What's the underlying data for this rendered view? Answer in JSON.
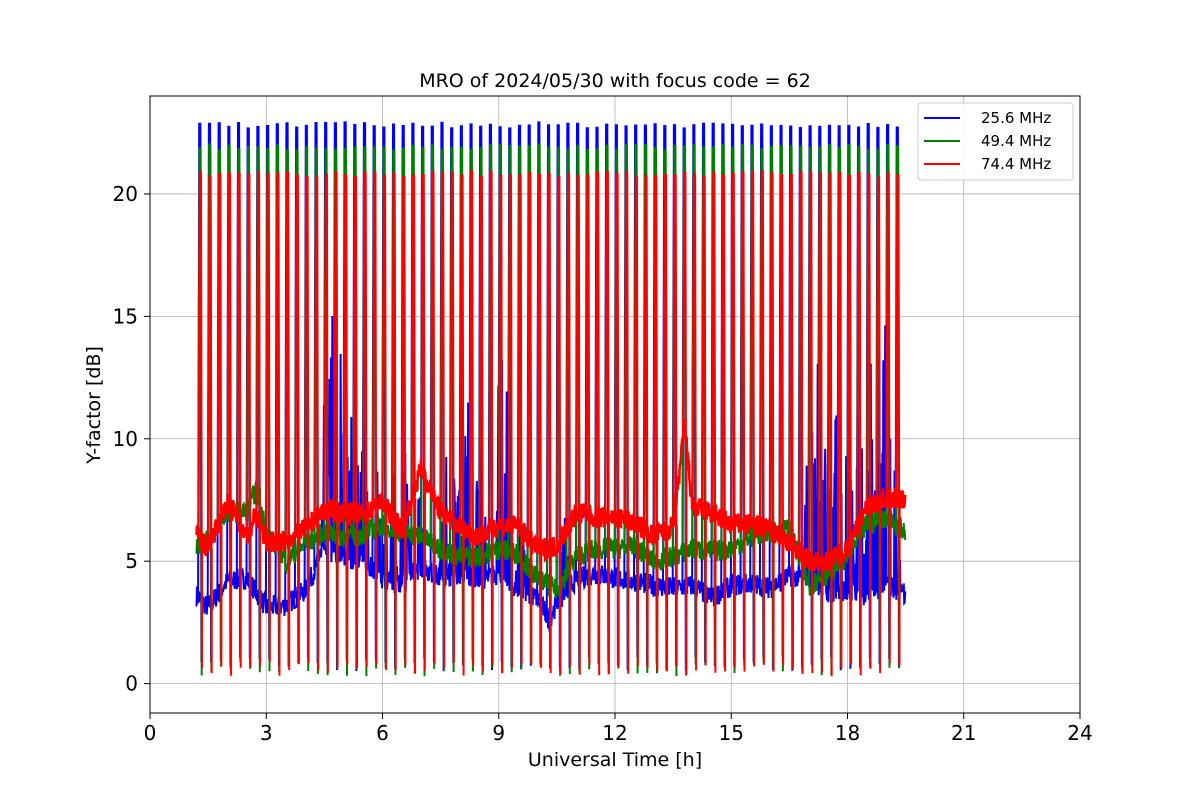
{
  "chart_data": {
    "type": "line",
    "title": "MRO of 2024/05/30 with focus code = 62",
    "xlabel": "Universal Time [h]",
    "ylabel": "Y-factor [dB]",
    "xlim": [
      0,
      24
    ],
    "ylim": [
      -1.2,
      24.0
    ],
    "x_ticks": [
      0,
      3,
      6,
      9,
      12,
      15,
      18,
      21,
      24
    ],
    "x_tick_labels": [
      "0",
      "3",
      "6",
      "9",
      "12",
      "15",
      "18",
      "21",
      "24"
    ],
    "y_ticks": [
      0,
      5,
      10,
      15,
      20
    ],
    "y_tick_labels": [
      "0",
      "5",
      "10",
      "15",
      "20"
    ],
    "grid": true,
    "legend_position": "top-right",
    "x_range_data": [
      1.2,
      19.5
    ],
    "series": [
      {
        "name": "25.6 MHz",
        "color": "#0000ff",
        "pulse_peak": 22.8,
        "pulse_low": 0.5,
        "baseline_points": [
          [
            1.2,
            3.6
          ],
          [
            1.5,
            3.1
          ],
          [
            2.0,
            4.2
          ],
          [
            2.5,
            4.3
          ],
          [
            3.0,
            3.1
          ],
          [
            3.5,
            3.2
          ],
          [
            4.0,
            3.8
          ],
          [
            4.5,
            5.5
          ],
          [
            5.0,
            5.2
          ],
          [
            5.5,
            5.0
          ],
          [
            6.0,
            4.3
          ],
          [
            6.5,
            4.0
          ],
          [
            7.0,
            4.8
          ],
          [
            7.5,
            4.3
          ],
          [
            8.0,
            4.5
          ],
          [
            8.5,
            4.2
          ],
          [
            9.0,
            4.5
          ],
          [
            9.5,
            3.8
          ],
          [
            10.0,
            3.5
          ],
          [
            10.3,
            2.6
          ],
          [
            10.5,
            3.3
          ],
          [
            11.0,
            4.3
          ],
          [
            11.5,
            4.5
          ],
          [
            12.0,
            4.3
          ],
          [
            12.5,
            4.2
          ],
          [
            13.0,
            4.0
          ],
          [
            13.5,
            3.9
          ],
          [
            14.0,
            4.0
          ],
          [
            14.5,
            3.5
          ],
          [
            15.0,
            4.0
          ],
          [
            15.5,
            4.1
          ],
          [
            16.0,
            3.9
          ],
          [
            16.5,
            4.4
          ],
          [
            17.0,
            4.3
          ],
          [
            17.5,
            3.7
          ],
          [
            18.0,
            3.8
          ],
          [
            18.5,
            3.6
          ],
          [
            19.0,
            4.1
          ],
          [
            19.5,
            3.6
          ]
        ],
        "burst_points": [
          [
            4.5,
            12.2
          ],
          [
            4.6,
            13.0
          ],
          [
            4.7,
            17.4
          ],
          [
            4.85,
            14.0
          ],
          [
            4.95,
            14.9
          ],
          [
            5.1,
            16.0
          ],
          [
            5.3,
            12.2
          ],
          [
            5.5,
            12.7
          ],
          [
            5.8,
            11.4
          ],
          [
            6.2,
            11.5
          ],
          [
            6.6,
            10.5
          ],
          [
            7.0,
            9.5
          ],
          [
            7.6,
            11.6
          ],
          [
            7.9,
            10.3
          ],
          [
            8.2,
            12.5
          ],
          [
            8.5,
            11.2
          ],
          [
            9.1,
            17.7
          ],
          [
            9.2,
            10.0
          ],
          [
            9.6,
            8.0
          ],
          [
            10.7,
            7.2
          ],
          [
            17.0,
            10.7
          ],
          [
            17.2,
            15.0
          ],
          [
            17.5,
            14.6
          ],
          [
            17.75,
            13.7
          ],
          [
            18.0,
            12.2
          ],
          [
            18.3,
            12.5
          ],
          [
            18.6,
            13.1
          ],
          [
            18.8,
            12.3
          ],
          [
            18.95,
            16.5
          ],
          [
            19.2,
            11.3
          ]
        ]
      },
      {
        "name": "49.4 MHz",
        "color": "#008000",
        "pulse_peak": 21.9,
        "pulse_low": 0.3,
        "baseline_points": [
          [
            1.2,
            5.7
          ],
          [
            1.5,
            5.8
          ],
          [
            2.0,
            7.0
          ],
          [
            2.5,
            7.0
          ],
          [
            2.75,
            8.0
          ],
          [
            3.0,
            6.2
          ],
          [
            3.5,
            5.0
          ],
          [
            4.0,
            5.7
          ],
          [
            4.5,
            6.2
          ],
          [
            5.0,
            6.0
          ],
          [
            5.5,
            6.1
          ],
          [
            6.0,
            6.5
          ],
          [
            6.5,
            6.2
          ],
          [
            7.0,
            6.0
          ],
          [
            7.5,
            5.5
          ],
          [
            8.0,
            5.2
          ],
          [
            8.5,
            5.2
          ],
          [
            9.0,
            5.5
          ],
          [
            9.5,
            5.3
          ],
          [
            10.0,
            4.3
          ],
          [
            10.5,
            3.8
          ],
          [
            11.0,
            5.2
          ],
          [
            11.5,
            5.5
          ],
          [
            12.0,
            5.5
          ],
          [
            12.5,
            5.6
          ],
          [
            13.0,
            5.0
          ],
          [
            13.5,
            5.2
          ],
          [
            14.0,
            5.5
          ],
          [
            14.5,
            5.4
          ],
          [
            15.0,
            5.5
          ],
          [
            15.5,
            6.0
          ],
          [
            16.0,
            6.2
          ],
          [
            16.5,
            6.3
          ],
          [
            17.0,
            4.0
          ],
          [
            17.5,
            4.5
          ],
          [
            18.0,
            5.2
          ],
          [
            18.5,
            6.5
          ],
          [
            19.0,
            6.8
          ],
          [
            19.5,
            6.2
          ]
        ]
      },
      {
        "name": "74.4 MHz",
        "color": "#ff0000",
        "pulse_peak": 20.8,
        "pulse_low": 0.3,
        "baseline_points": [
          [
            1.2,
            6.1
          ],
          [
            1.5,
            5.5
          ],
          [
            2.0,
            7.4
          ],
          [
            2.5,
            6.1
          ],
          [
            2.75,
            6.9
          ],
          [
            3.0,
            5.8
          ],
          [
            3.5,
            5.8
          ],
          [
            4.0,
            6.3
          ],
          [
            4.5,
            7.1
          ],
          [
            5.0,
            7.0
          ],
          [
            5.5,
            6.9
          ],
          [
            6.0,
            7.4
          ],
          [
            6.5,
            6.3
          ],
          [
            7.0,
            8.8
          ],
          [
            7.5,
            7.0
          ],
          [
            8.0,
            6.4
          ],
          [
            8.5,
            6.0
          ],
          [
            9.0,
            6.5
          ],
          [
            9.5,
            6.4
          ],
          [
            10.0,
            5.5
          ],
          [
            10.5,
            5.6
          ],
          [
            11.0,
            7.0
          ],
          [
            11.5,
            6.8
          ],
          [
            12.0,
            6.8
          ],
          [
            12.5,
            6.6
          ],
          [
            13.0,
            6.0
          ],
          [
            13.5,
            6.4
          ],
          [
            13.8,
            10.5
          ],
          [
            14.0,
            7.2
          ],
          [
            14.5,
            7.0
          ],
          [
            15.0,
            6.5
          ],
          [
            15.5,
            6.5
          ],
          [
            16.0,
            6.3
          ],
          [
            16.5,
            5.8
          ],
          [
            17.0,
            5.0
          ],
          [
            17.5,
            5.0
          ],
          [
            18.0,
            5.5
          ],
          [
            18.5,
            7.2
          ],
          [
            19.0,
            7.6
          ],
          [
            19.5,
            7.5
          ]
        ]
      }
    ]
  }
}
